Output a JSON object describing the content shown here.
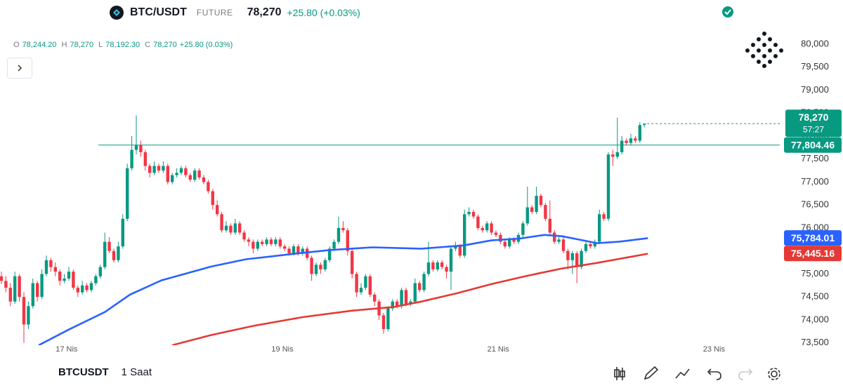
{
  "header": {
    "symbol": "BTC/USDT",
    "market": "FUTURE",
    "price": "78,270",
    "change": "+25.80 (+0.03%)"
  },
  "ohlc": {
    "items": [
      {
        "key": "O",
        "value": "78,244.20"
      },
      {
        "key": "H",
        "value": "78,270"
      },
      {
        "key": "L",
        "value": "78,192.30"
      },
      {
        "key": "C",
        "value": "78,270"
      }
    ],
    "change": "+25.80 (0.03%)"
  },
  "footer": {
    "symbol": "BTCUSDT",
    "interval": "1 Saat"
  },
  "chart_data": {
    "type": "candlestick",
    "up_color": "#089981",
    "down_color": "#f23645",
    "grid": false,
    "candles": [
      [
        74950,
        75050,
        74780,
        74850
      ],
      [
        74850,
        74950,
        74600,
        74700
      ],
      [
        74700,
        74800,
        74300,
        74400
      ],
      [
        74400,
        75050,
        74350,
        74950
      ],
      [
        74950,
        75000,
        74400,
        74500
      ],
      [
        74500,
        74600,
        73500,
        73900
      ],
      [
        73900,
        74400,
        73800,
        74300
      ],
      [
        74300,
        74900,
        74250,
        74800
      ],
      [
        74800,
        74850,
        74400,
        74500
      ],
      [
        74500,
        75100,
        74450,
        75000
      ],
      [
        75000,
        75400,
        74950,
        75300
      ],
      [
        75300,
        75350,
        75050,
        75150
      ],
      [
        75150,
        75250,
        74950,
        75050
      ],
      [
        75050,
        75100,
        74750,
        74850
      ],
      [
        74850,
        75000,
        74800,
        74900
      ],
      [
        74900,
        75150,
        74850,
        75050
      ],
      [
        75050,
        75100,
        74650,
        74700
      ],
      [
        74700,
        74750,
        74500,
        74600
      ],
      [
        74600,
        74850,
        74550,
        74750
      ],
      [
        74750,
        74800,
        74600,
        74650
      ],
      [
        74650,
        74850,
        74600,
        74800
      ],
      [
        74800,
        75000,
        74750,
        74950
      ],
      [
        74950,
        75200,
        74900,
        75150
      ],
      [
        75150,
        75900,
        75100,
        75700
      ],
      [
        75700,
        75800,
        75450,
        75500
      ],
      [
        75500,
        75550,
        75250,
        75300
      ],
      [
        75300,
        75700,
        75250,
        75600
      ],
      [
        75600,
        76300,
        75550,
        76200
      ],
      [
        76200,
        77400,
        76150,
        77300
      ],
      [
        77300,
        78000,
        77250,
        77700
      ],
      [
        77700,
        78450,
        77600,
        77800
      ],
      [
        77800,
        77900,
        77550,
        77650
      ],
      [
        77650,
        77700,
        77250,
        77350
      ],
      [
        77350,
        77400,
        77100,
        77200
      ],
      [
        77200,
        77450,
        77150,
        77350
      ],
      [
        77350,
        77400,
        77200,
        77250
      ],
      [
        77250,
        77450,
        77200,
        77350
      ],
      [
        77350,
        77400,
        76950,
        77000
      ],
      [
        77000,
        77200,
        76950,
        77150
      ],
      [
        77150,
        77300,
        77100,
        77200
      ],
      [
        77200,
        77350,
        77150,
        77300
      ],
      [
        77300,
        77350,
        77100,
        77150
      ],
      [
        77150,
        77200,
        77000,
        77050
      ],
      [
        77050,
        77300,
        77000,
        77250
      ],
      [
        77250,
        77300,
        77050,
        77100
      ],
      [
        77100,
        77150,
        76950,
        77000
      ],
      [
        77000,
        77050,
        76750,
        76800
      ],
      [
        76800,
        76850,
        76400,
        76500
      ],
      [
        76500,
        76600,
        76250,
        76300
      ],
      [
        76300,
        76350,
        75900,
        75950
      ],
      [
        75950,
        76150,
        75900,
        76050
      ],
      [
        76050,
        76100,
        75850,
        75900
      ],
      [
        75900,
        76200,
        75850,
        76100
      ],
      [
        76100,
        76150,
        75850,
        75900
      ],
      [
        75900,
        75950,
        75700,
        75750
      ],
      [
        75750,
        75800,
        75600,
        75700
      ],
      [
        75700,
        75750,
        75450,
        75550
      ],
      [
        75550,
        75750,
        75500,
        75700
      ],
      [
        75700,
        75750,
        75600,
        75650
      ],
      [
        75650,
        75800,
        75600,
        75750
      ],
      [
        75750,
        75800,
        75600,
        75650
      ],
      [
        75650,
        75800,
        75600,
        75750
      ],
      [
        75750,
        75800,
        75550,
        75600
      ],
      [
        75600,
        75650,
        75500,
        75550
      ],
      [
        75550,
        75600,
        75400,
        75450
      ],
      [
        75450,
        75650,
        75400,
        75600
      ],
      [
        75600,
        75650,
        75400,
        75450
      ],
      [
        75450,
        75600,
        75400,
        75550
      ],
      [
        75550,
        75600,
        75300,
        75350
      ],
      [
        75350,
        75400,
        74850,
        75000
      ],
      [
        75000,
        75250,
        74950,
        75200
      ],
      [
        75200,
        75250,
        75000,
        75100
      ],
      [
        75100,
        75350,
        75050,
        75300
      ],
      [
        75300,
        75600,
        75250,
        75550
      ],
      [
        75550,
        75750,
        75500,
        75700
      ],
      [
        75700,
        76250,
        75650,
        76000
      ],
      [
        76000,
        76150,
        75900,
        75950
      ],
      [
        75950,
        76000,
        75400,
        75500
      ],
      [
        75500,
        75550,
        74900,
        75000
      ],
      [
        75000,
        75050,
        74500,
        74600
      ],
      [
        74600,
        74800,
        74550,
        74700
      ],
      [
        74700,
        75000,
        74650,
        74950
      ],
      [
        74950,
        75000,
        74500,
        74550
      ],
      [
        74550,
        74600,
        74300,
        74400
      ],
      [
        74400,
        74450,
        74000,
        74100
      ],
      [
        74100,
        74150,
        73700,
        73800
      ],
      [
        73800,
        74300,
        73750,
        74250
      ],
      [
        74250,
        74450,
        74200,
        74400
      ],
      [
        74400,
        74450,
        74250,
        74300
      ],
      [
        74300,
        74700,
        74250,
        74650
      ],
      [
        74650,
        74700,
        74300,
        74350
      ],
      [
        74350,
        74450,
        74300,
        74400
      ],
      [
        74400,
        74900,
        74350,
        74800
      ],
      [
        74800,
        74850,
        74600,
        74650
      ],
      [
        74650,
        75050,
        74600,
        75000
      ],
      [
        75000,
        75700,
        74950,
        75250
      ],
      [
        75250,
        75300,
        75050,
        75100
      ],
      [
        75100,
        75300,
        75050,
        75250
      ],
      [
        75250,
        75300,
        75100,
        75150
      ],
      [
        75150,
        75200,
        74900,
        75050
      ],
      [
        75050,
        75600,
        74650,
        75550
      ],
      [
        75550,
        75700,
        75500,
        75600
      ],
      [
        75600,
        75650,
        75350,
        75400
      ],
      [
        75400,
        76400,
        75350,
        76300
      ],
      [
        76300,
        76450,
        76250,
        76350
      ],
      [
        76350,
        76400,
        76200,
        76250
      ],
      [
        76250,
        76300,
        75950,
        76000
      ],
      [
        76000,
        76050,
        75900,
        75950
      ],
      [
        75950,
        76150,
        75900,
        76100
      ],
      [
        76100,
        76150,
        75850,
        75900
      ],
      [
        75900,
        75950,
        75800,
        75850
      ],
      [
        75850,
        75900,
        75650,
        75700
      ],
      [
        75700,
        75750,
        75550,
        75600
      ],
      [
        75600,
        75800,
        75550,
        75750
      ],
      [
        75750,
        75800,
        75650,
        75700
      ],
      [
        75700,
        75900,
        75650,
        75850
      ],
      [
        75850,
        76150,
        75800,
        76100
      ],
      [
        76100,
        76900,
        76050,
        76450
      ],
      [
        76450,
        76500,
        76300,
        76350
      ],
      [
        76350,
        76900,
        76300,
        76700
      ],
      [
        76700,
        76750,
        76450,
        76500
      ],
      [
        76500,
        76550,
        76150,
        76200
      ],
      [
        76200,
        76600,
        75850,
        75900
      ],
      [
        75900,
        75950,
        75650,
        75700
      ],
      [
        75700,
        75800,
        75650,
        75750
      ],
      [
        75750,
        75800,
        75450,
        75500
      ],
      [
        75500,
        75550,
        75100,
        75300
      ],
      [
        75300,
        75500,
        75000,
        75450
      ],
      [
        75450,
        75500,
        74800,
        75150
      ],
      [
        75150,
        75550,
        75100,
        75500
      ],
      [
        75500,
        75700,
        75450,
        75650
      ],
      [
        75650,
        75700,
        75550,
        75600
      ],
      [
        75600,
        75750,
        75550,
        75700
      ],
      [
        75700,
        76400,
        75650,
        76300
      ],
      [
        76300,
        76350,
        76150,
        76200
      ],
      [
        76200,
        77650,
        76150,
        77600
      ],
      [
        77600,
        77700,
        77350,
        77550
      ],
      [
        77550,
        78400,
        77500,
        77650
      ],
      [
        77650,
        78000,
        77600,
        77900
      ],
      [
        77900,
        77950,
        77800,
        77850
      ],
      [
        77850,
        78050,
        77800,
        77950
      ],
      [
        77950,
        78000,
        77850,
        77900
      ],
      [
        77900,
        78300,
        77850,
        78240
      ],
      [
        78244.2,
        78270,
        78192.3,
        78270
      ]
    ],
    "series": [
      {
        "color": "#2962ff",
        "x": [
          8.3,
          15,
          23,
          28.6,
          35.6,
          46.6,
          54.4,
          65.3,
          73,
          82.5,
          93.4,
          102.8,
          109,
          115.3,
          120.8,
          124.7,
          129.4,
          132.5,
          137.2,
          143.8
        ],
        "values": [
          73450,
          73790,
          74170,
          74550,
          74860,
          75160,
          75320,
          75440,
          75520,
          75580,
          75550,
          75620,
          75730,
          75770,
          75850,
          75820,
          75730,
          75670,
          75700,
          75780
        ],
        "badge": {
          "value": 75784.01,
          "label": "75,784.01"
        }
      },
      {
        "color": "#e53935",
        "x": [
          38,
          46.6,
          56,
          67,
          77.8,
          87.2,
          93.4,
          101.3,
          109,
          116.9,
          124.7,
          132.5,
          143.8
        ],
        "values": [
          73450,
          73670,
          73870,
          74060,
          74200,
          74280,
          74400,
          74580,
          74780,
          74960,
          75120,
          75240,
          75440
        ],
        "badge": {
          "value": 75445.16,
          "label": "75,445.16"
        }
      }
    ],
    "price_line": {
      "value": 77804.46,
      "label": "77,804.46",
      "color": "#089981"
    },
    "last_price": {
      "value": 78270,
      "label": "78,270",
      "countdown": "57:27",
      "color": "#089981"
    },
    "xlim": [
      0,
      173
    ],
    "xticks": [
      {
        "value": 14.5,
        "label": "17 Nis"
      },
      {
        "value": 62.5,
        "label": "19 Nis"
      },
      {
        "value": 110.5,
        "label": "21 Nis"
      },
      {
        "value": 158.5,
        "label": "23 Nis"
      }
    ],
    "ylim": [
      73450,
      80350
    ],
    "yticks": [
      {
        "value": 73500,
        "label": "73,500"
      },
      {
        "value": 74000,
        "label": "74,000"
      },
      {
        "value": 74500,
        "label": "74,500"
      },
      {
        "value": 75000,
        "label": "75,000"
      },
      {
        "value": 75500,
        "label": "75,500"
      },
      {
        "value": 76000,
        "label": "76,000"
      },
      {
        "value": 76500,
        "label": "76,500"
      },
      {
        "value": 77000,
        "label": "77,000"
      },
      {
        "value": 77500,
        "label": "77,500"
      },
      {
        "value": 78000,
        "label": "78,000"
      },
      {
        "value": 78500,
        "label": "78,500"
      },
      {
        "value": 79000,
        "label": "79,000"
      },
      {
        "value": 79500,
        "label": "79,500"
      },
      {
        "value": 80000,
        "label": "80,000"
      }
    ]
  }
}
